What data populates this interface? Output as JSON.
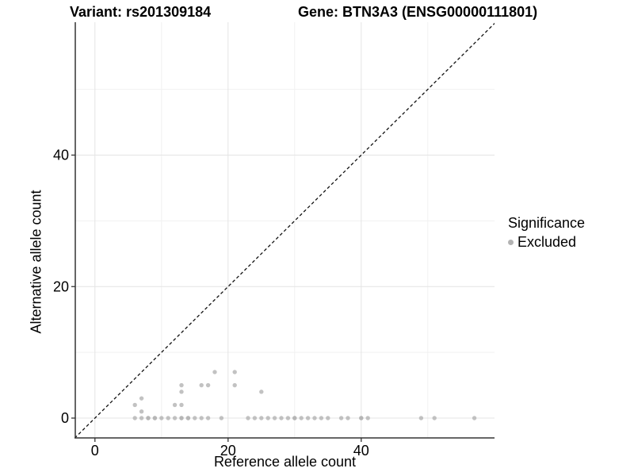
{
  "titles": {
    "variant": "Variant: rs201309184",
    "gene": "Gene: BTN3A3 (ENSG00000111801)"
  },
  "chart_data": {
    "type": "scatter",
    "xlabel": "Reference allele count",
    "ylabel": "Alternative allele count",
    "xlim": [
      -3,
      60
    ],
    "ylim": [
      -3,
      60.5
    ],
    "x_ticks": [
      0,
      20,
      40
    ],
    "y_ticks": [
      0,
      20,
      40
    ],
    "x_minor_ticks": [
      10,
      30,
      50
    ],
    "y_minor_ticks": [
      10,
      30,
      50
    ],
    "grid": true,
    "identity_line": {
      "style": "dashed",
      "from": [
        -3.05,
        -3.05
      ],
      "to": [
        60.3,
        60.3
      ]
    },
    "legend": {
      "title": "Significance",
      "position": "right",
      "items": [
        {
          "label": "Excluded",
          "color": "#b3b3b3"
        }
      ]
    },
    "series": [
      {
        "name": "Excluded",
        "color": "#b3b3b3",
        "points": [
          [
            6,
            0,
            1
          ],
          [
            7,
            0,
            1
          ],
          [
            8,
            0,
            2
          ],
          [
            9,
            0,
            2
          ],
          [
            10,
            0,
            1
          ],
          [
            11,
            0,
            1
          ],
          [
            12,
            0,
            1
          ],
          [
            13,
            0,
            2
          ],
          [
            14,
            0,
            2
          ],
          [
            15,
            0,
            1
          ],
          [
            16,
            0,
            1
          ],
          [
            17,
            0,
            1
          ],
          [
            19,
            0,
            1
          ],
          [
            23,
            0,
            1
          ],
          [
            24,
            0,
            1
          ],
          [
            25,
            0,
            1
          ],
          [
            26,
            0,
            1
          ],
          [
            27,
            0,
            1
          ],
          [
            28,
            0,
            1
          ],
          [
            29,
            0,
            1
          ],
          [
            30,
            0,
            2
          ],
          [
            31,
            0,
            1
          ],
          [
            32,
            0,
            1
          ],
          [
            33,
            0,
            1
          ],
          [
            34,
            0,
            1
          ],
          [
            35,
            0,
            1
          ],
          [
            37,
            0,
            1
          ],
          [
            38,
            0,
            1
          ],
          [
            40,
            0,
            2
          ],
          [
            41,
            0,
            1
          ],
          [
            49,
            0,
            1
          ],
          [
            51,
            0,
            1
          ],
          [
            57,
            0,
            1
          ],
          [
            7,
            1,
            1
          ],
          [
            6,
            2,
            1
          ],
          [
            12,
            2,
            1
          ],
          [
            13,
            2,
            1
          ],
          [
            7,
            3,
            1
          ],
          [
            13,
            4,
            1
          ],
          [
            25,
            4,
            1
          ],
          [
            13,
            5,
            1
          ],
          [
            16,
            5,
            1
          ],
          [
            17,
            5,
            1
          ],
          [
            21,
            5,
            1
          ],
          [
            18,
            7,
            1
          ],
          [
            21,
            7,
            1
          ]
        ]
      }
    ]
  },
  "colors": {
    "point": "#b3b3b3",
    "grid_major": "#e4e4e4",
    "grid_minor": "#f1f1f1",
    "axis_line": "#333333",
    "tick_text": "#000000",
    "identity_line": "#111111",
    "background": "#ffffff"
  }
}
